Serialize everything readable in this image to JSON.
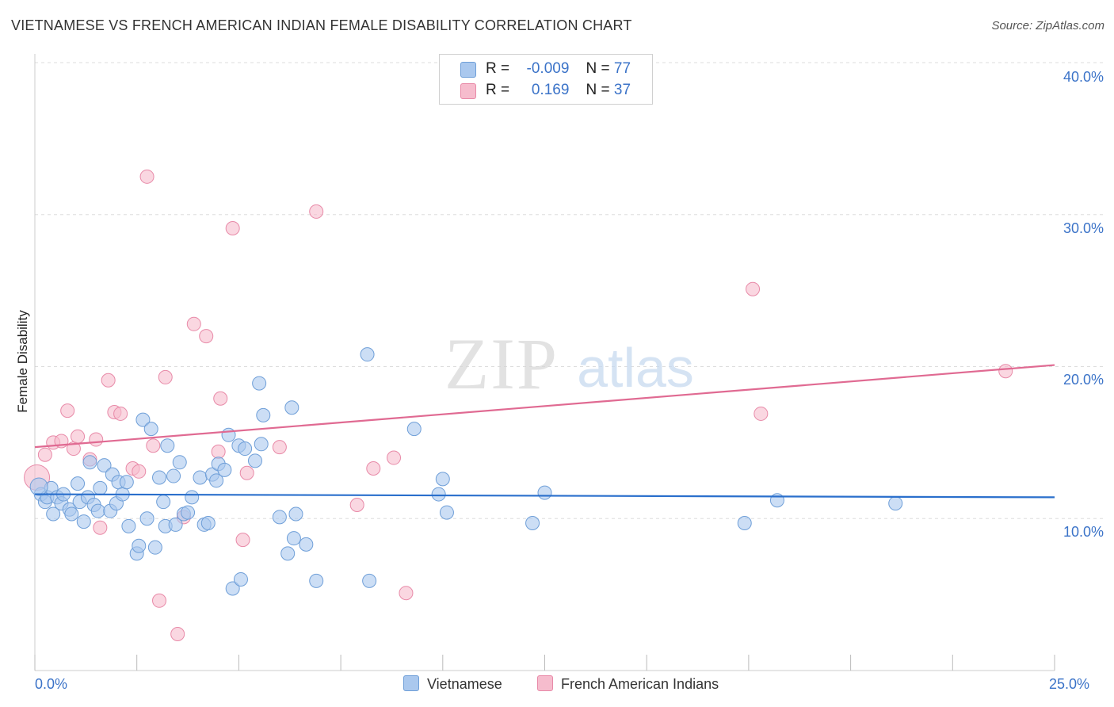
{
  "header": {
    "title": "VIETNAMESE VS FRENCH AMERICAN INDIAN FEMALE DISABILITY CORRELATION CHART",
    "source": "Source: ZipAtlas.com"
  },
  "watermark": {
    "zip": "ZIP",
    "atlas": "atlas"
  },
  "legend": {
    "series1": {
      "r_label": "R =",
      "r_value": "-0.009",
      "n_label": "N =",
      "n_value": "77"
    },
    "series2": {
      "r_label": "R =",
      "r_value": "0.169",
      "n_label": "N =",
      "n_value": "37"
    }
  },
  "bottom_legend": {
    "series1": "Vietnamese",
    "series2": "French American Indians"
  },
  "colors": {
    "series1_fill": "#aac8ee",
    "series1_stroke": "#6f9fd8",
    "series1_line": "#2a6fcc",
    "series2_fill": "#f6bccd",
    "series2_stroke": "#e88aa8",
    "series2_line": "#e06a92",
    "tick_text": "#3b73c8",
    "grid": "#dddddd"
  },
  "chart_data": {
    "type": "scatter",
    "title": "VIETNAMESE VS FRENCH AMERICAN INDIAN FEMALE DISABILITY CORRELATION CHART",
    "xlabel": "",
    "ylabel": "Female Disability",
    "xlim": [
      0,
      25
    ],
    "ylim": [
      0,
      40
    ],
    "x_tick_labels": [
      "0.0%",
      "25.0%"
    ],
    "y_ticks": [
      10,
      20,
      30,
      40
    ],
    "y_tick_labels": [
      "10.0%",
      "20.0%",
      "30.0%",
      "40.0%"
    ],
    "grid": true,
    "series": [
      {
        "name": "Vietnamese",
        "trend": {
          "x": [
            0,
            25
          ],
          "y": [
            11.6,
            11.4
          ]
        },
        "points": [
          [
            0.15,
            11.6
          ],
          [
            0.25,
            11.1
          ],
          [
            0.3,
            11.4
          ],
          [
            0.4,
            12.0
          ],
          [
            0.45,
            10.3
          ],
          [
            0.55,
            11.4
          ],
          [
            0.65,
            11.0
          ],
          [
            0.7,
            11.6
          ],
          [
            0.85,
            10.6
          ],
          [
            0.9,
            10.3
          ],
          [
            1.05,
            12.3
          ],
          [
            1.1,
            11.1
          ],
          [
            1.2,
            9.8
          ],
          [
            1.3,
            11.4
          ],
          [
            1.35,
            13.7
          ],
          [
            1.45,
            10.9
          ],
          [
            1.55,
            10.5
          ],
          [
            1.6,
            12.0
          ],
          [
            1.7,
            13.5
          ],
          [
            1.85,
            10.5
          ],
          [
            1.9,
            12.9
          ],
          [
            2.0,
            11.0
          ],
          [
            2.05,
            12.4
          ],
          [
            2.15,
            11.6
          ],
          [
            2.25,
            12.4
          ],
          [
            2.3,
            9.5
          ],
          [
            2.5,
            7.7
          ],
          [
            2.55,
            8.2
          ],
          [
            2.65,
            16.5
          ],
          [
            2.75,
            10.0
          ],
          [
            2.85,
            15.9
          ],
          [
            2.95,
            8.1
          ],
          [
            3.05,
            12.7
          ],
          [
            3.15,
            11.1
          ],
          [
            3.2,
            9.5
          ],
          [
            3.25,
            14.8
          ],
          [
            3.4,
            12.8
          ],
          [
            3.45,
            9.6
          ],
          [
            3.55,
            13.7
          ],
          [
            3.65,
            10.3
          ],
          [
            3.75,
            10.4
          ],
          [
            3.85,
            11.4
          ],
          [
            4.05,
            12.7
          ],
          [
            4.15,
            9.6
          ],
          [
            4.25,
            9.7
          ],
          [
            4.35,
            12.9
          ],
          [
            4.45,
            12.5
          ],
          [
            4.5,
            13.6
          ],
          [
            4.65,
            13.2
          ],
          [
            4.75,
            15.5
          ],
          [
            4.85,
            5.4
          ],
          [
            5.0,
            14.8
          ],
          [
            5.05,
            6.0
          ],
          [
            5.15,
            14.6
          ],
          [
            5.4,
            13.8
          ],
          [
            5.5,
            18.9
          ],
          [
            5.55,
            14.9
          ],
          [
            5.6,
            16.8
          ],
          [
            6.0,
            10.1
          ],
          [
            6.2,
            7.7
          ],
          [
            6.3,
            17.3
          ],
          [
            6.35,
            8.7
          ],
          [
            6.4,
            10.3
          ],
          [
            6.65,
            8.3
          ],
          [
            6.9,
            5.9
          ],
          [
            8.15,
            20.8
          ],
          [
            8.2,
            5.9
          ],
          [
            9.3,
            15.9
          ],
          [
            9.9,
            11.6
          ],
          [
            10.0,
            12.6
          ],
          [
            10.1,
            10.4
          ],
          [
            12.2,
            9.7
          ],
          [
            12.5,
            11.7
          ],
          [
            17.4,
            9.7
          ],
          [
            18.2,
            11.2
          ],
          [
            21.1,
            11.0
          ],
          [
            0.1,
            12.1
          ]
        ]
      },
      {
        "name": "French American Indians",
        "trend": {
          "x": [
            0,
            25
          ],
          "y": [
            14.7,
            20.1
          ]
        },
        "points": [
          [
            0.05,
            12.7
          ],
          [
            0.25,
            14.2
          ],
          [
            0.45,
            15.0
          ],
          [
            0.65,
            15.1
          ],
          [
            0.8,
            17.1
          ],
          [
            0.95,
            14.6
          ],
          [
            1.05,
            15.4
          ],
          [
            1.35,
            13.9
          ],
          [
            1.5,
            15.2
          ],
          [
            1.6,
            9.4
          ],
          [
            1.8,
            19.1
          ],
          [
            1.95,
            17.0
          ],
          [
            2.1,
            16.9
          ],
          [
            2.4,
            13.3
          ],
          [
            2.55,
            13.1
          ],
          [
            2.75,
            32.5
          ],
          [
            2.9,
            14.8
          ],
          [
            3.05,
            4.6
          ],
          [
            3.2,
            19.3
          ],
          [
            3.5,
            2.4
          ],
          [
            3.65,
            10.1
          ],
          [
            3.9,
            22.8
          ],
          [
            4.2,
            22.0
          ],
          [
            4.5,
            14.4
          ],
          [
            4.55,
            17.9
          ],
          [
            4.85,
            29.1
          ],
          [
            5.1,
            8.6
          ],
          [
            5.2,
            13.0
          ],
          [
            6.0,
            14.7
          ],
          [
            6.9,
            30.2
          ],
          [
            7.9,
            10.9
          ],
          [
            8.3,
            13.3
          ],
          [
            8.8,
            14.0
          ],
          [
            9.1,
            5.1
          ],
          [
            17.6,
            25.1
          ],
          [
            17.8,
            16.9
          ],
          [
            23.8,
            19.7
          ]
        ]
      }
    ]
  }
}
